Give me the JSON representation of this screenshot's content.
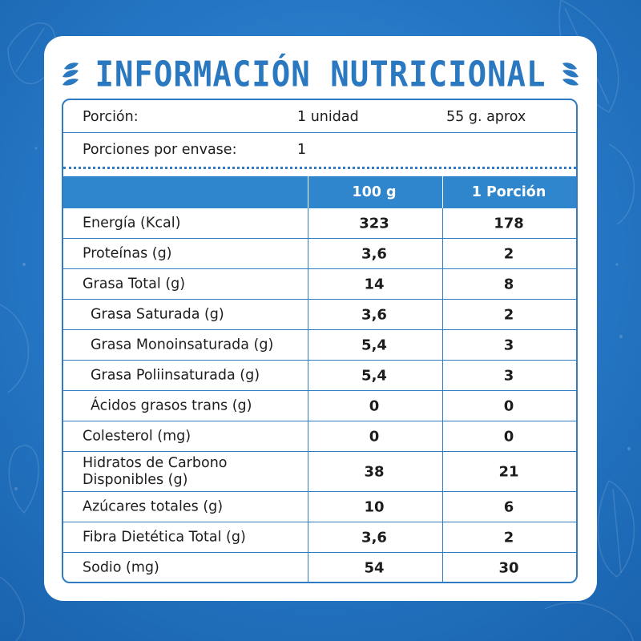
{
  "title": "INFORMACIÓN NUTRICIONAL",
  "serving": {
    "label": "Porción:",
    "value": "1 unidad",
    "weight": "55 g. aprox",
    "per_package_label": "Porciones por envase:",
    "per_package_value": "1"
  },
  "columns": [
    "100 g",
    "1 Porción"
  ],
  "rows": [
    {
      "label": "Energía (Kcal)",
      "per100": "323",
      "portion": "178"
    },
    {
      "label": "Proteínas (g)",
      "per100": "3,6",
      "portion": "2"
    },
    {
      "label": "Grasa Total (g)",
      "per100": "14",
      "portion": "8"
    },
    {
      "label": "Grasa Saturada (g)",
      "per100": "3,6",
      "portion": "2"
    },
    {
      "label": "Grasa Monoinsaturada (g)",
      "per100": "5,4",
      "portion": "3"
    },
    {
      "label": "Grasa Poliinsaturada (g)",
      "per100": "5,4",
      "portion": "3"
    },
    {
      "label": "Ácidos grasos trans (g)",
      "per100": "0",
      "portion": "0"
    },
    {
      "label": "Colesterol (mg)",
      "per100": "0",
      "portion": "0"
    },
    {
      "label": "Hidratos de Carbono Disponibles (g)",
      "per100": "38",
      "portion": "21"
    },
    {
      "label": "Azúcares totales (g)",
      "per100": "10",
      "portion": "6"
    },
    {
      "label": "Fibra Dietética Total (g)",
      "per100": "3,6",
      "portion": "2"
    },
    {
      "label": "Sodio (mg)",
      "per100": "54",
      "portion": "30"
    }
  ],
  "colors": {
    "background": "#2476c4",
    "accent": "#2f86cc",
    "title": "#2a78c0",
    "text": "#1d1d1d"
  },
  "icons": [
    "almond-left-icon",
    "almond-right-icon"
  ]
}
